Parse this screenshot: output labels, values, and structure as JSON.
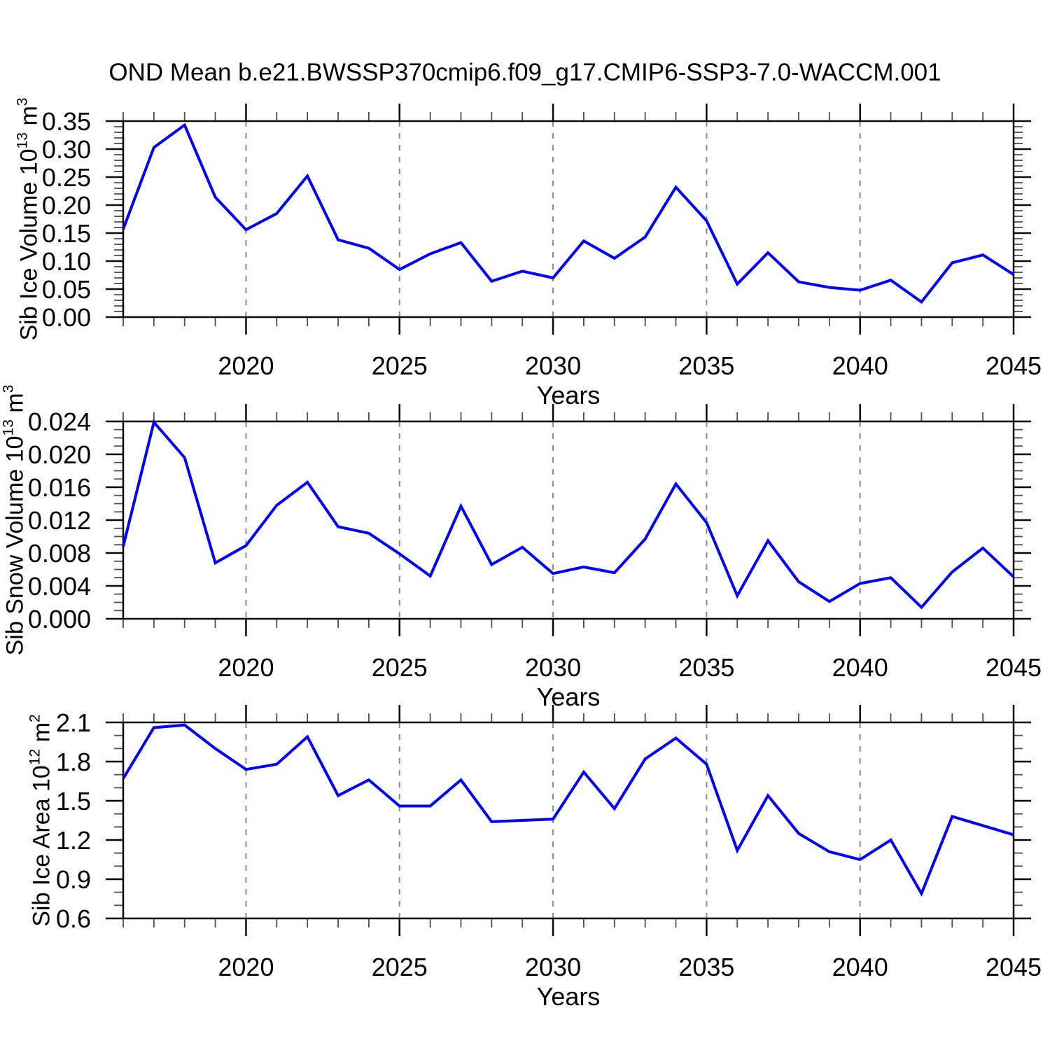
{
  "title": "OND Mean b.e21.BWSSP370cmip6.f09_g17.CMIP6-SSP3-7.0-WACCM.001",
  "line_color": "#0000ff",
  "grid_color": "#8a8a8a",
  "chart_data": [
    {
      "type": "line",
      "id": "sib-ice-volume",
      "ylabel_parts": {
        "base": "Sib Ice Volume 10",
        "exp": "13",
        "unit": " m",
        "unit_exp": "3"
      },
      "xlabel": "Years",
      "line_color": "#0000ff",
      "grid": true,
      "legend": "none",
      "xlim": [
        2016,
        2045
      ],
      "ylim": [
        0.0,
        0.35
      ],
      "ytick_step": 0.05,
      "yminor_step": 0.01,
      "ytick_labels": [
        "0.00",
        "0.05",
        "0.10",
        "0.15",
        "0.20",
        "0.25",
        "0.30",
        "0.35"
      ],
      "xticks": [
        2020,
        2025,
        2030,
        2035,
        2040,
        2045
      ],
      "xtick_labels": [
        "2020",
        "2025",
        "2030",
        "2035",
        "2040",
        "2045"
      ],
      "xminor_step": 1,
      "x": [
        2016,
        2017,
        2018,
        2019,
        2020,
        2021,
        2022,
        2023,
        2024,
        2025,
        2026,
        2027,
        2028,
        2029,
        2030,
        2031,
        2032,
        2033,
        2034,
        2035,
        2036,
        2037,
        2038,
        2039,
        2040,
        2041,
        2042,
        2043,
        2044,
        2045
      ],
      "values": [
        0.157,
        0.303,
        0.343,
        0.214,
        0.156,
        0.185,
        0.252,
        0.138,
        0.123,
        0.085,
        0.113,
        0.133,
        0.064,
        0.082,
        0.07,
        0.136,
        0.105,
        0.143,
        0.232,
        0.172,
        0.059,
        0.115,
        0.063,
        0.053,
        0.048,
        0.066,
        0.027,
        0.097,
        0.111,
        0.076
      ]
    },
    {
      "type": "line",
      "id": "sib-snow-volume",
      "ylabel_parts": {
        "base": "Sib Snow Volume 10",
        "exp": "13",
        "unit": " m",
        "unit_exp": "3"
      },
      "xlabel": "Years",
      "line_color": "#0000ff",
      "grid": true,
      "legend": "none",
      "xlim": [
        2016,
        2045
      ],
      "ylim": [
        0.0,
        0.024
      ],
      "ytick_step": 0.004,
      "yminor_step": 0.001,
      "ytick_labels": [
        "0.000",
        "0.004",
        "0.008",
        "0.012",
        "0.016",
        "0.020",
        "0.024"
      ],
      "xticks": [
        2020,
        2025,
        2030,
        2035,
        2040,
        2045
      ],
      "xtick_labels": [
        "2020",
        "2025",
        "2030",
        "2035",
        "2040",
        "2045"
      ],
      "xminor_step": 1,
      "x": [
        2016,
        2017,
        2018,
        2019,
        2020,
        2021,
        2022,
        2023,
        2024,
        2025,
        2026,
        2027,
        2028,
        2029,
        2030,
        2031,
        2032,
        2033,
        2034,
        2035,
        2036,
        2037,
        2038,
        2039,
        2040,
        2041,
        2042,
        2043,
        2044,
        2045
      ],
      "values": [
        0.0088,
        0.0239,
        0.0196,
        0.0068,
        0.0089,
        0.0138,
        0.0166,
        0.0112,
        0.0104,
        0.0079,
        0.0052,
        0.0137,
        0.0066,
        0.0087,
        0.0055,
        0.0063,
        0.0056,
        0.0097,
        0.0164,
        0.0117,
        0.0028,
        0.0095,
        0.0045,
        0.0021,
        0.0043,
        0.005,
        0.0014,
        0.0057,
        0.0086,
        0.0051
      ]
    },
    {
      "type": "line",
      "id": "sib-ice-area",
      "ylabel_parts": {
        "base": "Sib Ice Area 10",
        "exp": "12",
        "unit": " m",
        "unit_exp": "2"
      },
      "xlabel": "Years",
      "line_color": "#0000ff",
      "grid": true,
      "legend": "none",
      "xlim": [
        2016,
        2045
      ],
      "ylim": [
        0.6,
        2.1
      ],
      "ytick_step": 0.3,
      "yminor_step": 0.1,
      "ytick_labels": [
        "0.6",
        "0.9",
        "1.2",
        "1.5",
        "1.8",
        "2.1"
      ],
      "xticks": [
        2020,
        2025,
        2030,
        2035,
        2040,
        2045
      ],
      "xtick_labels": [
        "2020",
        "2025",
        "2030",
        "2035",
        "2040",
        "2045"
      ],
      "xminor_step": 1,
      "x": [
        2016,
        2017,
        2018,
        2019,
        2020,
        2021,
        2022,
        2023,
        2024,
        2025,
        2026,
        2027,
        2028,
        2029,
        2030,
        2031,
        2032,
        2033,
        2034,
        2035,
        2036,
        2037,
        2038,
        2039,
        2040,
        2041,
        2042,
        2043,
        2044,
        2045
      ],
      "values": [
        1.67,
        2.06,
        2.08,
        1.9,
        1.74,
        1.78,
        1.99,
        1.54,
        1.66,
        1.46,
        1.46,
        1.66,
        1.34,
        1.35,
        1.36,
        1.72,
        1.44,
        1.82,
        1.98,
        1.78,
        1.12,
        1.54,
        1.25,
        1.11,
        1.05,
        1.2,
        0.79,
        1.38,
        1.31,
        1.24
      ]
    }
  ]
}
